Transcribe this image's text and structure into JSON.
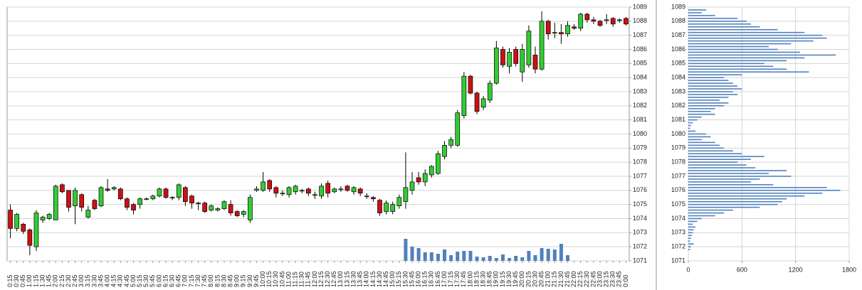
{
  "chart_data": [
    {
      "type": "candlestick",
      "up_color": "#33cc33",
      "down_color": "#cc1111",
      "volume_color": "#4f81bd",
      "grid": true,
      "x": [
        "0:15",
        "0:30",
        "0:45",
        "1:00",
        "1:15",
        "1:30",
        "1:45",
        "2:00",
        "2:15",
        "2:30",
        "2:45",
        "3:00",
        "3:15",
        "3:30",
        "3:45",
        "4:00",
        "4:15",
        "4:30",
        "4:45",
        "5:00",
        "5:15",
        "5:30",
        "5:45",
        "6:00",
        "6:15",
        "6:30",
        "6:45",
        "7:00",
        "7:15",
        "7:30",
        "7:45",
        "8:00",
        "8:15",
        "8:30",
        "8:45",
        "9:00",
        "9:15",
        "9:30",
        "9:45",
        "10:00",
        "10:15",
        "10:30",
        "10:45",
        "11:00",
        "11:15",
        "11:30",
        "11:45",
        "12:00",
        "12:15",
        "12:30",
        "12:45",
        "13:00",
        "13:15",
        "13:30",
        "13:45",
        "14:00",
        "14:15",
        "14:30",
        "14:45",
        "15:00",
        "15:15",
        "15:30",
        "15:45",
        "16:00",
        "16:15",
        "16:30",
        "16:45",
        "17:00",
        "17:15",
        "17:30",
        "17:45",
        "18:00",
        "18:15",
        "18:30",
        "18:45",
        "19:00",
        "19:15",
        "19:30",
        "19:45",
        "20:00",
        "20:15",
        "20:30",
        "20:45",
        "21:00",
        "21:15",
        "21:30",
        "21:45",
        "22:00",
        "22:15",
        "22:30",
        "22:45",
        "23:00",
        "23:15",
        "23:30",
        "23:45",
        "0:00"
      ],
      "open": [
        1074.6,
        1073.3,
        1073.6,
        1073.2,
        1072.0,
        1073.9,
        1074.0,
        1073.9,
        1076.4,
        1076.0,
        1074.9,
        1075.7,
        1074.1,
        1075.3,
        1074.9,
        1076.1,
        1076.1,
        1076.1,
        1075.4,
        1075.0,
        1075.0,
        1075.4,
        1075.4,
        1075.6,
        1076.1,
        1075.5,
        1075.5,
        1076.2,
        1075.6,
        1075.1,
        1075.1,
        1074.6,
        1074.6,
        1074.7,
        1075.0,
        1074.5,
        1074.3,
        1073.9,
        1076.0,
        1076.0,
        1076.7,
        1076.2,
        1075.8,
        1075.7,
        1075.9,
        1076.0,
        1076.1,
        1075.7,
        1075.6,
        1076.5,
        1075.9,
        1076.1,
        1076.3,
        1075.9,
        1076.1,
        1075.6,
        1075.5,
        1075.3,
        1074.5,
        1074.5,
        1074.9,
        1075.2,
        1076.0,
        1076.9,
        1076.6,
        1077.1,
        1077.2,
        1078.4,
        1079.2,
        1079.2,
        1081.3,
        1084.1,
        1082.9,
        1081.9,
        1082.4,
        1083.6,
        1086.0,
        1084.8,
        1086.0,
        1084.4,
        1084.9,
        1085.6,
        1084.6,
        1088.0,
        1087.2,
        1087.2,
        1087.1,
        1087.6,
        1087.5,
        1088.5,
        1088.1,
        1088.0,
        1088.1,
        1088.2,
        1088.1,
        1088.2
      ],
      "high": [
        1075.0,
        1074.4,
        1073.7,
        1073.3,
        1074.6,
        1074.2,
        1074.4,
        1076.4,
        1076.5,
        1076.0,
        1076.2,
        1075.8,
        1074.9,
        1075.4,
        1076.3,
        1076.8,
        1076.3,
        1076.2,
        1075.5,
        1075.1,
        1075.5,
        1075.5,
        1075.7,
        1076.2,
        1076.2,
        1075.6,
        1076.5,
        1076.3,
        1075.7,
        1075.2,
        1075.2,
        1075.0,
        1074.8,
        1075.3,
        1075.3,
        1074.6,
        1074.6,
        1075.7,
        1076.3,
        1077.3,
        1076.8,
        1076.3,
        1076.0,
        1076.3,
        1076.4,
        1076.1,
        1076.2,
        1075.9,
        1076.5,
        1076.7,
        1076.2,
        1076.3,
        1076.4,
        1076.3,
        1076.2,
        1075.8,
        1075.6,
        1075.4,
        1075.3,
        1075.2,
        1075.7,
        1078.7,
        1077.3,
        1077.3,
        1077.5,
        1077.8,
        1078.8,
        1079.5,
        1079.8,
        1081.7,
        1084.4,
        1084.2,
        1083.0,
        1082.7,
        1083.8,
        1086.6,
        1086.2,
        1086.1,
        1086.2,
        1086.4,
        1087.7,
        1086.2,
        1088.7,
        1088.1,
        1087.9,
        1087.8,
        1088.0,
        1087.8,
        1088.6,
        1088.6,
        1088.3,
        1088.1,
        1088.5,
        1088.3,
        1088.2,
        1088.3
      ],
      "low": [
        1072.6,
        1073.1,
        1072.9,
        1071.4,
        1071.7,
        1073.7,
        1073.9,
        1073.9,
        1075.8,
        1074.5,
        1073.6,
        1074.5,
        1074.0,
        1074.6,
        1074.8,
        1075.9,
        1076.0,
        1075.3,
        1074.6,
        1074.3,
        1074.7,
        1075.3,
        1075.3,
        1075.5,
        1075.4,
        1075.3,
        1075.3,
        1074.9,
        1074.7,
        1074.6,
        1074.4,
        1074.5,
        1074.5,
        1074.6,
        1074.2,
        1074.1,
        1074.1,
        1073.7,
        1075.9,
        1075.9,
        1075.9,
        1075.5,
        1075.6,
        1075.5,
        1075.7,
        1075.8,
        1075.6,
        1075.4,
        1075.4,
        1075.5,
        1075.8,
        1075.9,
        1075.9,
        1075.7,
        1075.6,
        1075.4,
        1075.2,
        1074.2,
        1074.3,
        1074.3,
        1074.7,
        1074.7,
        1075.7,
        1076.4,
        1076.3,
        1076.9,
        1077.1,
        1078.2,
        1079.0,
        1079.1,
        1081.1,
        1082.8,
        1081.4,
        1081.7,
        1082.2,
        1083.5,
        1084.7,
        1084.3,
        1084.8,
        1083.7,
        1084.7,
        1084.3,
        1084.5,
        1086.7,
        1086.8,
        1086.4,
        1086.9,
        1087.4,
        1087.3,
        1087.9,
        1087.8,
        1087.6,
        1087.8,
        1087.6,
        1087.9,
        1087.7
      ],
      "close": [
        1073.3,
        1074.3,
        1073.1,
        1072.1,
        1074.4,
        1074.1,
        1074.3,
        1076.3,
        1075.9,
        1074.8,
        1076.0,
        1074.8,
        1074.6,
        1074.7,
        1076.2,
        1076.0,
        1076.2,
        1075.4,
        1074.8,
        1074.6,
        1075.4,
        1075.4,
        1075.6,
        1076.1,
        1075.5,
        1075.5,
        1076.4,
        1075.2,
        1075.1,
        1075.1,
        1074.5,
        1074.9,
        1074.7,
        1075.2,
        1074.4,
        1074.2,
        1074.5,
        1075.5,
        1076.1,
        1076.6,
        1076.1,
        1075.8,
        1075.8,
        1076.2,
        1076.3,
        1076.0,
        1075.8,
        1075.7,
        1076.3,
        1075.8,
        1076.1,
        1076.1,
        1076.0,
        1076.2,
        1075.8,
        1075.6,
        1075.4,
        1074.4,
        1075.1,
        1075.0,
        1075.5,
        1076.2,
        1076.6,
        1076.6,
        1077.2,
        1077.7,
        1078.6,
        1079.2,
        1079.6,
        1081.5,
        1084.1,
        1082.9,
        1081.6,
        1082.5,
        1083.6,
        1086.1,
        1084.9,
        1085.8,
        1085.0,
        1086.0,
        1087.3,
        1084.6,
        1088.0,
        1087.1,
        1087.2,
        1087.1,
        1087.7,
        1087.5,
        1088.5,
        1088.1,
        1088.0,
        1087.7,
        1088.1,
        1087.8,
        1088.1,
        1087.8
      ],
      "volume": [
        null,
        null,
        null,
        null,
        null,
        null,
        null,
        null,
        null,
        null,
        null,
        null,
        null,
        null,
        null,
        null,
        null,
        null,
        null,
        null,
        null,
        null,
        null,
        null,
        null,
        null,
        null,
        null,
        null,
        null,
        null,
        null,
        null,
        null,
        null,
        null,
        null,
        null,
        null,
        null,
        null,
        null,
        null,
        null,
        null,
        null,
        null,
        null,
        null,
        null,
        null,
        null,
        null,
        null,
        null,
        null,
        null,
        null,
        null,
        null,
        null,
        31,
        20,
        18,
        12,
        12,
        10,
        16,
        8,
        13,
        14,
        14,
        6,
        5,
        7,
        4,
        9,
        4,
        7,
        5,
        14,
        8,
        18,
        17,
        16,
        24,
        8,
        null,
        null,
        null,
        null,
        null,
        null,
        null,
        null,
        null
      ],
      "ylim": [
        1071,
        1089
      ],
      "yticks": [
        1071,
        1072,
        1073,
        1074,
        1075,
        1076,
        1077,
        1078,
        1079,
        1080,
        1081,
        1082,
        1083,
        1084,
        1085,
        1086,
        1087,
        1088,
        1089
      ]
    },
    {
      "type": "barh",
      "color": "#4f81bd",
      "grid": true,
      "y": [
        1088.8,
        1088.6,
        1088.4,
        1088.2,
        1088.0,
        1087.8,
        1087.6,
        1087.4,
        1087.2,
        1087.0,
        1086.8,
        1086.6,
        1086.4,
        1086.2,
        1086.0,
        1085.8,
        1085.6,
        1085.4,
        1085.2,
        1085.0,
        1084.8,
        1084.6,
        1084.4,
        1084.2,
        1084.0,
        1083.8,
        1083.6,
        1083.4,
        1083.2,
        1083.0,
        1082.8,
        1082.6,
        1082.4,
        1082.2,
        1082.0,
        1081.8,
        1081.6,
        1081.4,
        1081.2,
        1081.0,
        1080.8,
        1080.6,
        1080.4,
        1080.2,
        1080.0,
        1079.8,
        1079.6,
        1079.4,
        1079.2,
        1079.0,
        1078.8,
        1078.6,
        1078.4,
        1078.2,
        1078.0,
        1077.8,
        1077.6,
        1077.4,
        1077.2,
        1077.0,
        1076.8,
        1076.6,
        1076.4,
        1076.2,
        1076.0,
        1075.8,
        1075.6,
        1075.4,
        1075.2,
        1075.0,
        1074.8,
        1074.6,
        1074.4,
        1074.2,
        1074.0,
        1073.8,
        1073.6,
        1073.4,
        1073.2,
        1073.0,
        1072.8,
        1072.6,
        1072.4,
        1072.2,
        1072.0,
        1071.8
      ],
      "values": [
        200,
        150,
        300,
        550,
        650,
        700,
        800,
        1000,
        1300,
        1500,
        1550,
        1400,
        1150,
        900,
        1000,
        1250,
        1650,
        1300,
        1100,
        850,
        950,
        1100,
        1350,
        600,
        400,
        450,
        500,
        550,
        600,
        500,
        550,
        450,
        350,
        450,
        400,
        300,
        250,
        300,
        150,
        100,
        50,
        30,
        20,
        80,
        200,
        250,
        150,
        300,
        350,
        400,
        500,
        600,
        850,
        700,
        550,
        650,
        750,
        1100,
        900,
        1150,
        800,
        700,
        950,
        1550,
        1700,
        1500,
        1300,
        1100,
        1050,
        1000,
        800,
        500,
        400,
        300,
        150,
        100,
        50,
        80,
        60,
        50,
        40,
        30,
        20,
        60,
        30,
        20
      ],
      "xlim": [
        0,
        1800
      ],
      "xticks": [
        0,
        600,
        1200,
        1800
      ],
      "ylim": [
        1071,
        1089
      ],
      "yticks": [
        1071,
        1072,
        1073,
        1074,
        1075,
        1076,
        1077,
        1078,
        1079,
        1080,
        1081,
        1082,
        1083,
        1084,
        1085,
        1086,
        1087,
        1088,
        1089
      ]
    }
  ]
}
